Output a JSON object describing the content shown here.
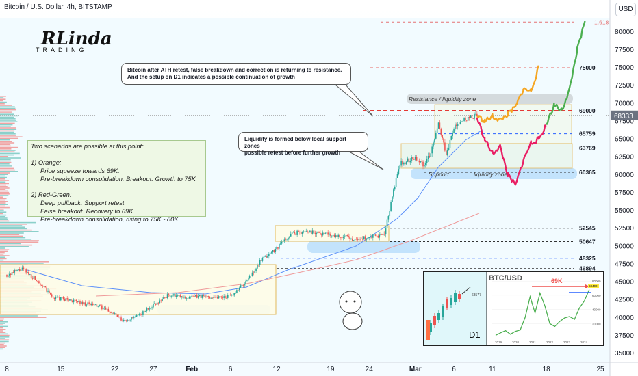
{
  "header": {
    "title": "Bitcoin / U.S. Dollar, 4h, BITSTAMP",
    "currency_button": "USD"
  },
  "logo": {
    "line1": "RLinda",
    "line2": "TRADING"
  },
  "callouts": {
    "top": [
      "Bitcoin after ATH retest, false breakdown and correction is returning to resistance.",
      "And the setup on D1 indicates a possible continuation of growth"
    ],
    "liquidity": [
      "Liquidity is formed below local support zones",
      "possible retest before further growth"
    ]
  },
  "scenarios": {
    "lines": [
      "Two scenarios are possible at this point:",
      "",
      "1) Orange:",
      "Price squeeze towards 69K.",
      "Pre-breakdown consolidation. Breakout. Growth to 75K",
      "",
      "2) Red-Green:",
      "Deep pullback. Support retest.",
      "False breakout. Recovery to 69K.",
      "Pre-breakdown consolidation, rising to 75K - 80K"
    ]
  },
  "zones": {
    "resistance": "Resistance / liquidity zone",
    "support": "Support",
    "liquidity": "liquidity zone"
  },
  "colors": {
    "bull": "#26a69a",
    "bear": "#ef5350",
    "orange_path": "#f5a623",
    "pink_path": "#e91e63",
    "green_path": "#4caf50",
    "ma_blue": "#5b8ff9",
    "ma_red": "#ef9a9a",
    "level_red": "#e53935",
    "level_blue": "#2962ff",
    "fib": "#e57373"
  },
  "chart_data": {
    "type": "candlestick",
    "title": "Bitcoin / U.S. Dollar, 4h, BITSTAMP",
    "ylim": [
      35000,
      82000
    ],
    "y_ticks": [
      "80000",
      "77500",
      "75000",
      "72500",
      "70000",
      "67500",
      "65000",
      "62500",
      "60000",
      "57500",
      "55000",
      "52500",
      "50000",
      "47500",
      "45000",
      "42500",
      "40000",
      "37500",
      "35000"
    ],
    "x_ticks": [
      "8",
      "15",
      "22",
      "27",
      "Feb",
      "6",
      "12",
      "19",
      "24",
      "Mar",
      "6",
      "11",
      "18",
      "25"
    ],
    "current_price": {
      "label": "68333",
      "value": 68333
    },
    "levels": [
      {
        "value": 81400,
        "label": "1.618",
        "style": "fib"
      },
      {
        "value": 75000,
        "label": "75000",
        "style": "red-dashed"
      },
      {
        "value": 69000,
        "label": "69000",
        "style": "red-dashed-bold"
      },
      {
        "value": 65759,
        "label": "65759",
        "style": "blue-dashed"
      },
      {
        "value": 63769,
        "label": "63769",
        "style": "blue-dashed"
      },
      {
        "value": 60365,
        "label": "60365",
        "style": "dark-dashed"
      },
      {
        "value": 52545,
        "label": "52545",
        "style": "dark-dashed"
      },
      {
        "value": 50647,
        "label": "50647",
        "style": "dark-dashed"
      },
      {
        "value": 48325,
        "label": "48325",
        "style": "blue-dashed"
      },
      {
        "value": 46894,
        "label": "46894",
        "style": "dark-dashed"
      }
    ],
    "price_series": {
      "name": "",
      "x": [
        "Jan 8",
        "Jan 10",
        "Jan 12",
        "Jan 14",
        "Jan 16",
        "Jan 18",
        "Jan 20",
        "Jan 22",
        "Jan 23",
        "Jan 25",
        "Jan 27",
        "Jan 29",
        "Jan 31",
        "Feb 2",
        "Feb 4",
        "Feb 6",
        "Feb 8",
        "Feb 10",
        "Feb 12",
        "Feb 14",
        "Feb 16",
        "Feb 18",
        "Feb 20",
        "Feb 22",
        "Feb 24",
        "Feb 26",
        "Feb 27",
        "Feb 28",
        "Mar 1",
        "Mar 2",
        "Mar 3",
        "Mar 4",
        "Mar 5",
        "Mar 6",
        "Mar 7",
        "Mar 8",
        "Mar 9"
      ],
      "values": [
        46000,
        46800,
        45200,
        42800,
        42500,
        42000,
        41600,
        40500,
        39500,
        40200,
        41800,
        43200,
        42800,
        43000,
        42900,
        43000,
        45000,
        48000,
        49800,
        51800,
        52100,
        51800,
        51500,
        51000,
        51200,
        51600,
        57000,
        61500,
        62500,
        61500,
        63000,
        67000,
        63000,
        66500,
        67500,
        68000,
        68333
      ]
    },
    "scenario_orange": {
      "x": [
        "Mar 9",
        "Mar 10",
        "Mar 11",
        "Mar 12",
        "Mar 13",
        "Mar 14",
        "Mar 15",
        "Mar 16",
        "Mar 17"
      ],
      "values": [
        68333,
        67500,
        68200,
        67700,
        68500,
        69500,
        72000,
        71800,
        75000
      ]
    },
    "scenario_red_green": {
      "x": [
        "Mar 9",
        "Mar 10",
        "Mar 11",
        "Mar 12",
        "Mar 13",
        "Mar 14",
        "Mar 15",
        "Mar 16",
        "Mar 17",
        "Mar 18",
        "Mar 19",
        "Mar 20",
        "Mar 21",
        "Mar 22",
        "Mar 23"
      ],
      "values": [
        68000,
        65000,
        63000,
        64000,
        60000,
        58500,
        62000,
        64500,
        65000,
        67000,
        69800,
        69000,
        72000,
        77500,
        81400
      ]
    },
    "inset": {
      "left_label": "D1",
      "left_value": "68577",
      "right_title": "BTC/USD",
      "right_annotation": "69K",
      "right_price_tag": "68400",
      "right_y_ticks": [
        "80000",
        "60000",
        "40000",
        "20000"
      ],
      "right_x_ticks": [
        "2019",
        "2020",
        "2021",
        "2022",
        "2023",
        "2024"
      ]
    }
  }
}
